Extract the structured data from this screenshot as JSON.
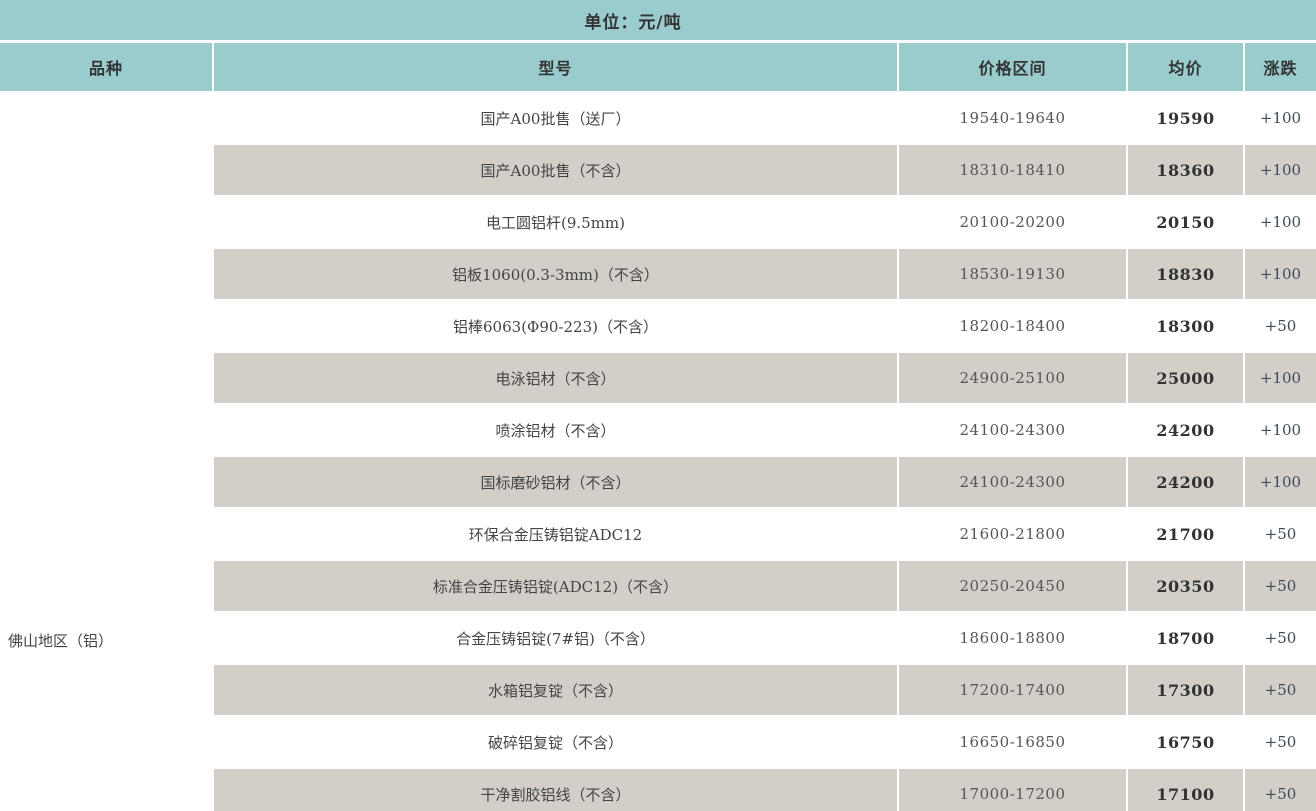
{
  "banner": {
    "unit_label": "单位：元/吨"
  },
  "table": {
    "columns": {
      "variety": "品种",
      "model": "型号",
      "range": "价格区间",
      "avg": "均价",
      "change": "涨跌"
    },
    "region": "佛山地区（铝）",
    "rows": [
      {
        "model": "国产A00批售（送厂）",
        "range": "19540-19640",
        "avg": "19590",
        "change": "+100"
      },
      {
        "model": "国产A00批售（不含）",
        "range": "18310-18410",
        "avg": "18360",
        "change": "+100"
      },
      {
        "model": "电工圆铝杆(9.5mm)",
        "range": "20100-20200",
        "avg": "20150",
        "change": "+100"
      },
      {
        "model": "铝板1060(0.3-3mm)（不含）",
        "range": "18530-19130",
        "avg": "18830",
        "change": "+100"
      },
      {
        "model": "铝棒6063(Φ90-223)（不含）",
        "range": "18200-18400",
        "avg": "18300",
        "change": "+50"
      },
      {
        "model": "电泳铝材（不含）",
        "range": "24900-25100",
        "avg": "25000",
        "change": "+100"
      },
      {
        "model": "喷涂铝材（不含）",
        "range": "24100-24300",
        "avg": "24200",
        "change": "+100"
      },
      {
        "model": "国标磨砂铝材（不含）",
        "range": "24100-24300",
        "avg": "24200",
        "change": "+100"
      },
      {
        "model": "环保合金压铸铝锭ADC12",
        "range": "21600-21800",
        "avg": "21700",
        "change": "+50"
      },
      {
        "model": "标准合金压铸铝锭(ADC12)（不含）",
        "range": "20250-20450",
        "avg": "20350",
        "change": "+50"
      },
      {
        "model": "合金压铸铝锭(7#铝)（不含）",
        "range": "18600-18800",
        "avg": "18700",
        "change": "+50"
      },
      {
        "model": "水箱铝复锭（不含）",
        "range": "17200-17400",
        "avg": "17300",
        "change": "+50"
      },
      {
        "model": "破碎铝复锭（不含）",
        "range": "16650-16850",
        "avg": "16750",
        "change": "+50"
      },
      {
        "model": "干净割胶铝线（不含）",
        "range": "17000-17200",
        "avg": "17100",
        "change": "+50"
      }
    ]
  },
  "colors": {
    "header_bg": "#9acccd",
    "alt_row_bg": "#d3cfc8",
    "change_text": "#3c4c5c"
  }
}
